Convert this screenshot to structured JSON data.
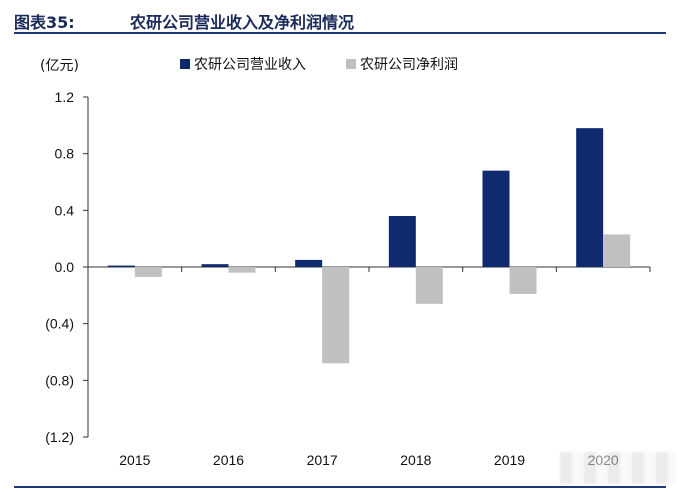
{
  "header": {
    "figure_label": "图表35:",
    "title": "农研公司营业收入及净利润情况"
  },
  "unit_label": "(亿元)",
  "legend": [
    {
      "label": "农研公司营业收入",
      "color": "#0f2a6e"
    },
    {
      "label": "农研公司净利润",
      "color": "#c0c0c0"
    }
  ],
  "chart_data": {
    "type": "bar",
    "title": "农研公司营业收入及净利润情况",
    "ylabel": "(亿元)",
    "categories": [
      "2015",
      "2016",
      "2017",
      "2018",
      "2019",
      "2020"
    ],
    "series": [
      {
        "name": "农研公司营业收入",
        "color": "#0f2a6e",
        "values": [
          0.01,
          0.02,
          0.05,
          0.36,
          0.68,
          0.98
        ]
      },
      {
        "name": "农研公司净利润",
        "color": "#c0c0c0",
        "values": [
          -0.07,
          -0.04,
          -0.68,
          -0.26,
          -0.19,
          0.23
        ]
      }
    ],
    "ylim": [
      -1.2,
      1.2
    ],
    "yticks": [
      1.2,
      0.8,
      0.4,
      0.0,
      -0.4,
      -0.8,
      -1.2
    ],
    "ytick_labels": [
      "1.2",
      "0.8",
      "0.4",
      "0.0",
      "(0.4)",
      "(0.8)",
      "(1.2)"
    ],
    "grid": false,
    "legend_position": "top"
  }
}
